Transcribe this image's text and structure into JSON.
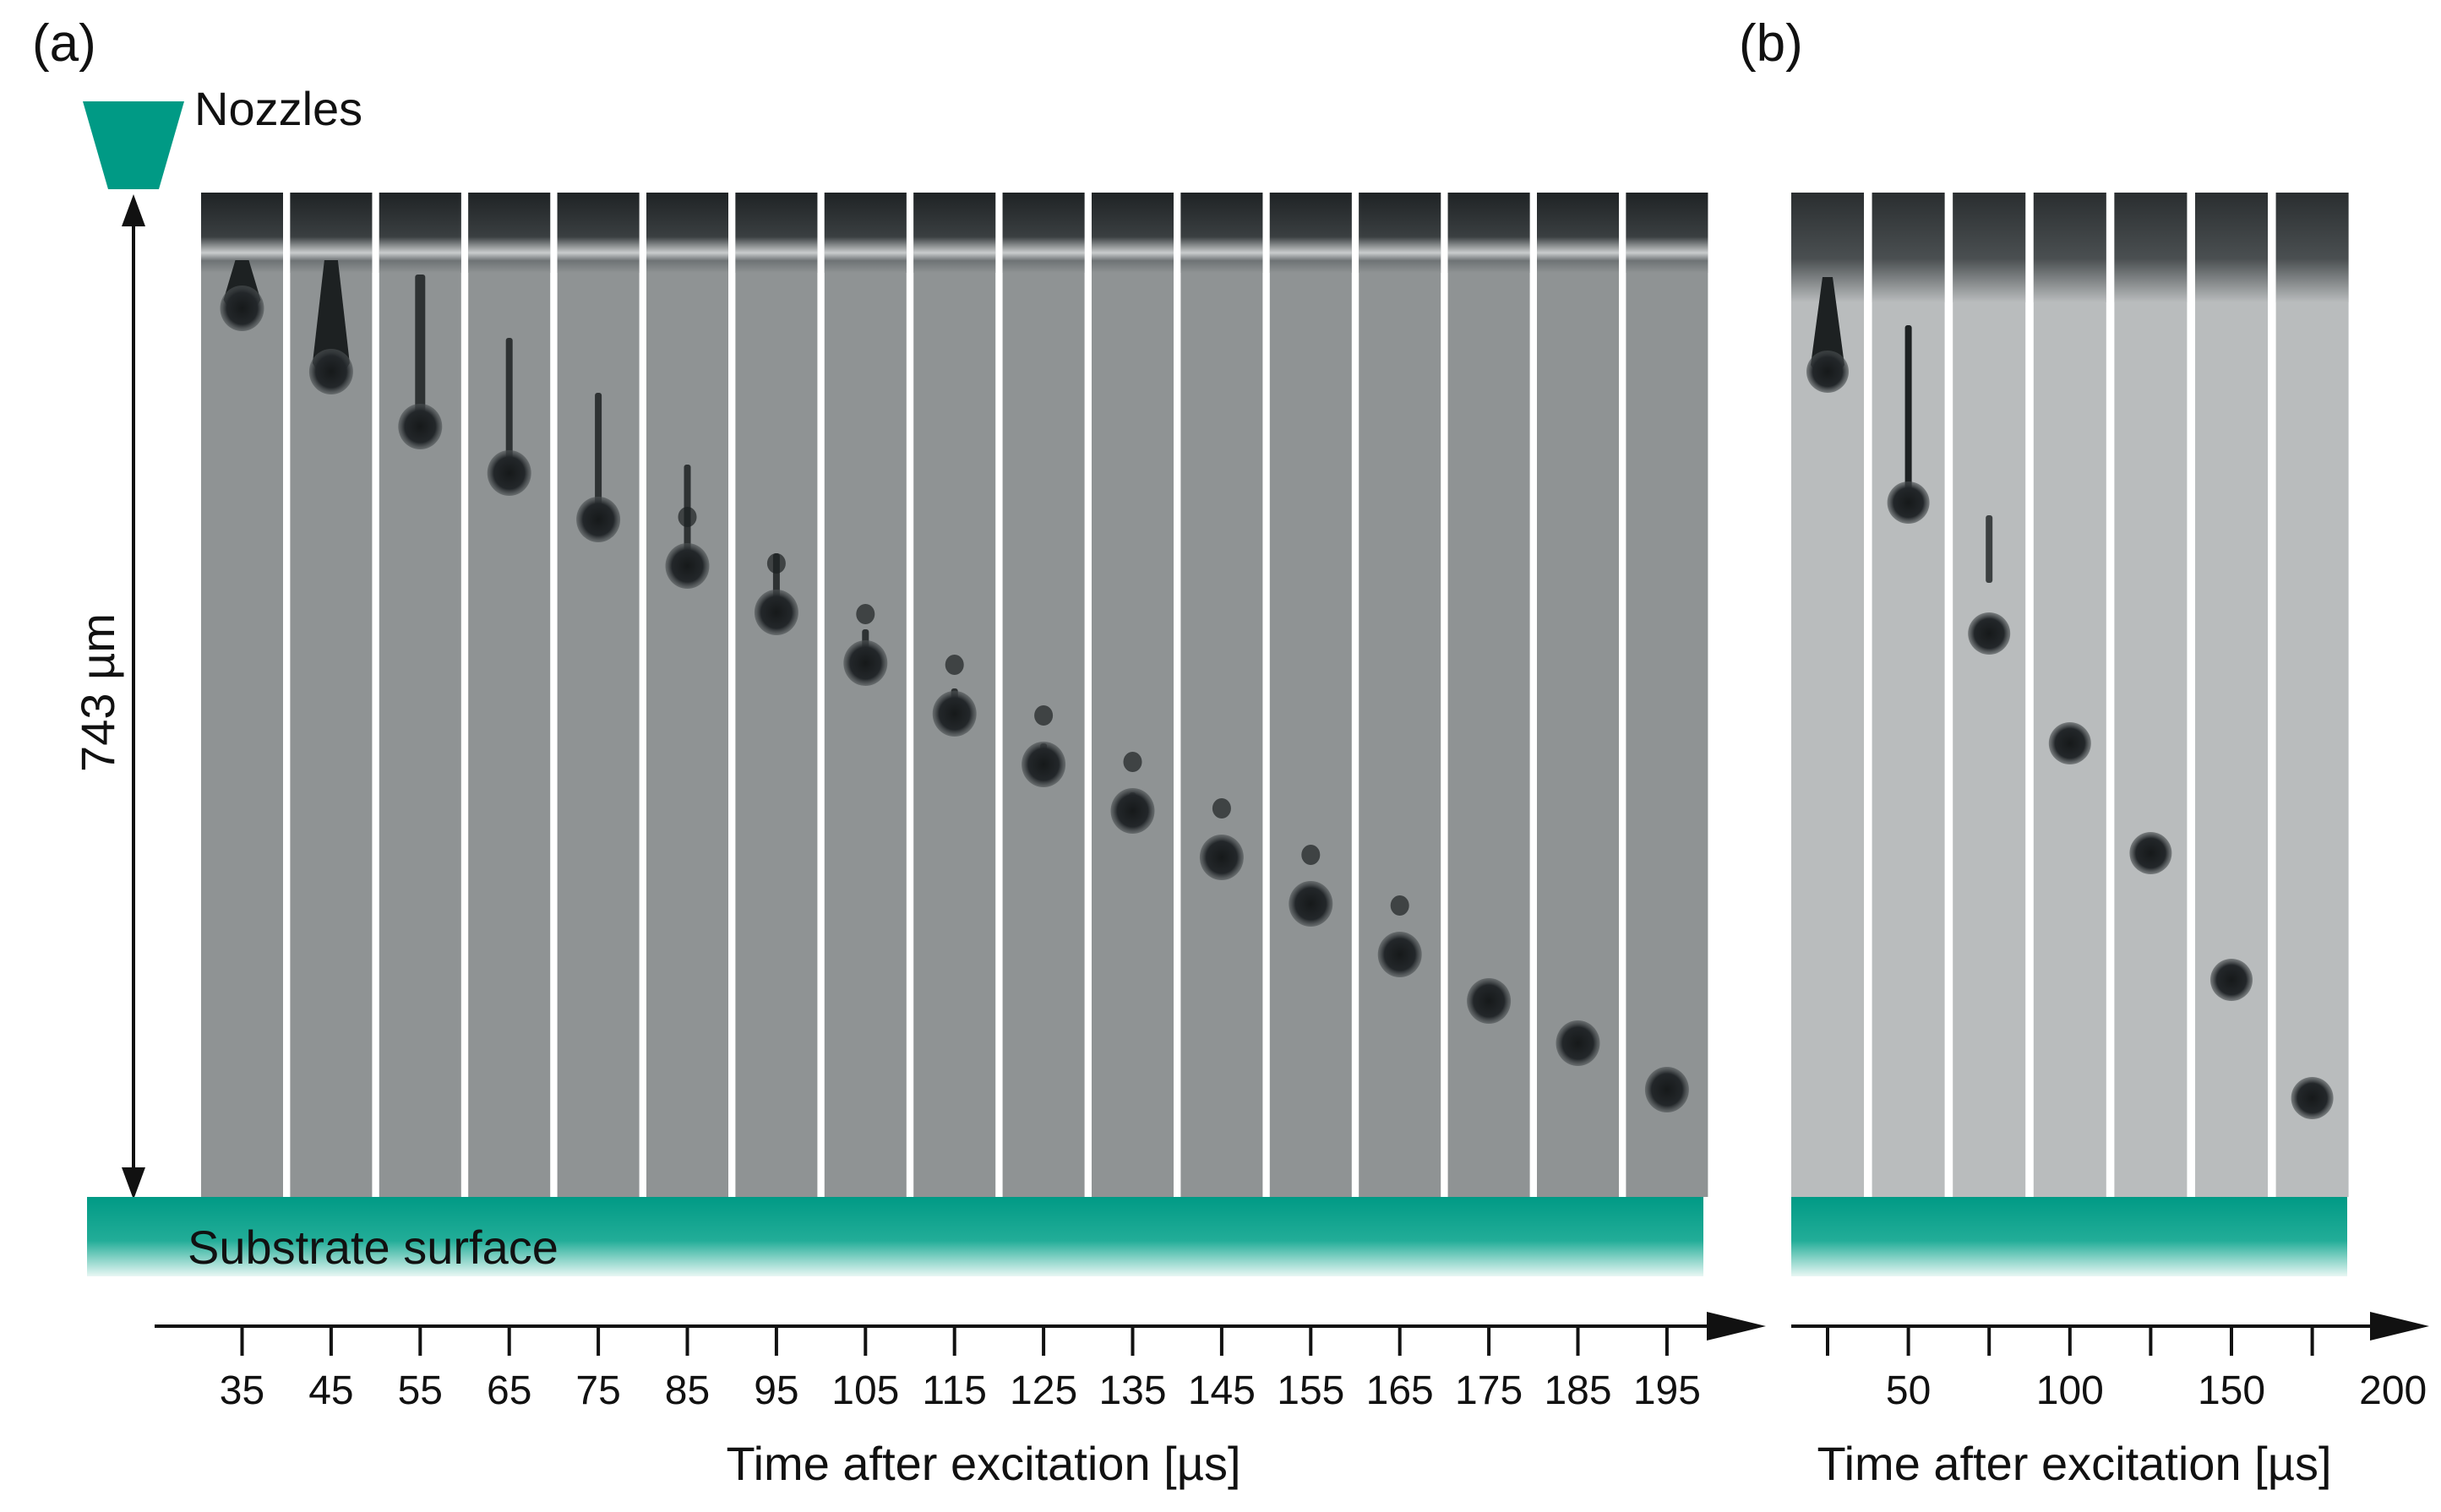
{
  "panel_a": {
    "label": "(a)",
    "nozzle_label": "Nozzles",
    "distance_label": "743 µm",
    "substrate_label": "Substrate surface",
    "xlabel": "Time after excitation [µs]",
    "frame_times": [
      "35",
      "45",
      "55",
      "65",
      "75",
      "85",
      "95",
      "105",
      "115",
      "125",
      "135",
      "145",
      "155",
      "165",
      "175",
      "185",
      "195"
    ],
    "tick_count": 17
  },
  "panel_b": {
    "label": "(b)",
    "xlabel": "Time after excitation [µs]",
    "frame_times": [
      "25",
      "50",
      "75",
      "100",
      "125",
      "150",
      "175"
    ],
    "tick_labels": [
      "50",
      "100",
      "150",
      "200"
    ],
    "tick_count": 7
  },
  "colors": {
    "teal": "#009a85",
    "frame_bg_a": "#8f9394",
    "frame_bg_b": "#b9bcbd",
    "droplet": "#1d2122",
    "nozzle_band": "#2a2e30"
  }
}
